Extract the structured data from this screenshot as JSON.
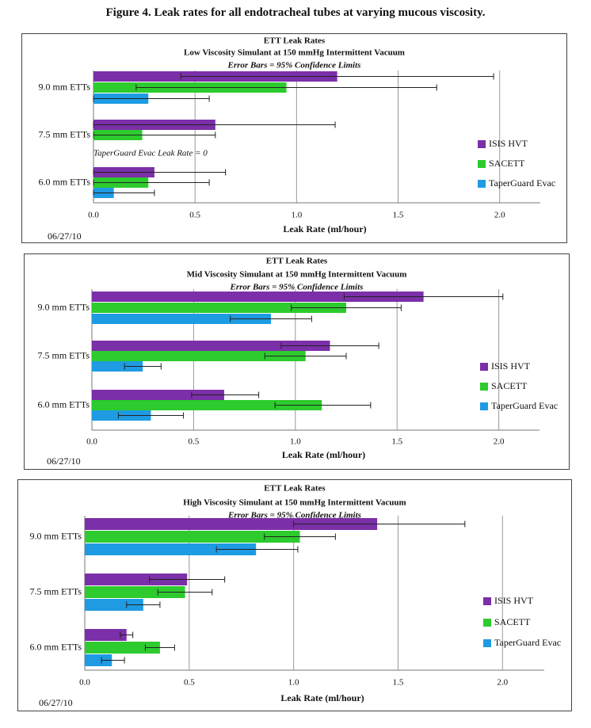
{
  "figure_title": "Figure 4. Leak rates for all endotracheal tubes at varying mucous viscosity.",
  "colors": {
    "isis": "#7B2FA8",
    "sacett": "#2DCB2D",
    "taper": "#1E9BE3",
    "errorbar": "#222222",
    "grid": "#999999"
  },
  "chart_data": [
    {
      "type": "bar",
      "orientation": "horizontal",
      "title": "ETT Leak Rates",
      "subtitle": "Low Viscosity Simulant at 150 mmHg Intermittent Vacuum",
      "note": "Error Bars = 95% Confidence Limits",
      "annotation": "TaperGuard Evac Leak Rate = 0",
      "date": "06/27/10",
      "xlabel": "Leak Rate (ml/hour)",
      "xlim": [
        0,
        2.2
      ],
      "xticks": [
        "0.0",
        "0.5",
        "1.0",
        "1.5",
        "2.0"
      ],
      "categories": [
        "9.0 mm ETTs",
        "7.5 mm ETTs",
        "6.0 mm ETTs"
      ],
      "series": [
        {
          "name": "ISIS HVT",
          "values": [
            1.2,
            0.6,
            0.3
          ],
          "err_low": [
            0.43,
            0.0,
            0.0
          ],
          "err_high": [
            1.97,
            1.19,
            0.65
          ]
        },
        {
          "name": "SACETT",
          "values": [
            0.95,
            0.24,
            0.27
          ],
          "err_low": [
            0.21,
            0.0,
            0.0
          ],
          "err_high": [
            1.69,
            0.6,
            0.57
          ]
        },
        {
          "name": "TaperGuard Evac",
          "values": [
            0.27,
            0.0,
            0.1
          ],
          "err_low": [
            0.0,
            0.0,
            0.0
          ],
          "err_high": [
            0.57,
            0.0,
            0.3
          ]
        }
      ],
      "grid": true,
      "legend": "right"
    },
    {
      "type": "bar",
      "orientation": "horizontal",
      "title": "ETT Leak Rates",
      "subtitle": "Mid Viscosity Simulant at 150 mmHg Intermittent Vacuum",
      "note": "Error Bars = 95% Confidence Limits",
      "date": "06/27/10",
      "xlabel": "Leak Rate (ml/hour)",
      "xlim": [
        0,
        2.2
      ],
      "xticks": [
        "0.0",
        "0.5",
        "1.0",
        "1.5",
        "2.0"
      ],
      "categories": [
        "9.0 mm ETTs",
        "7.5 mm ETTs",
        "6.0 mm ETTs"
      ],
      "series": [
        {
          "name": "ISIS HVT",
          "values": [
            1.63,
            1.17,
            0.65
          ],
          "err_low": [
            1.24,
            0.93,
            0.49
          ],
          "err_high": [
            2.02,
            1.41,
            0.82
          ]
        },
        {
          "name": "SACETT",
          "values": [
            1.25,
            1.05,
            1.13
          ],
          "err_low": [
            0.98,
            0.85,
            0.9
          ],
          "err_high": [
            1.52,
            1.25,
            1.37
          ]
        },
        {
          "name": "TaperGuard Evac",
          "values": [
            0.88,
            0.25,
            0.29
          ],
          "err_low": [
            0.68,
            0.16,
            0.13
          ],
          "err_high": [
            1.08,
            0.34,
            0.45
          ]
        }
      ],
      "grid": true,
      "legend": "right"
    },
    {
      "type": "bar",
      "orientation": "horizontal",
      "title": "ETT Leak Rates",
      "subtitle": "High Viscosity Simulant at 150 mmHg Intermittent Vacuum",
      "note": "Error Bars = 95% Confidence Limits",
      "date": "06/27/10",
      "xlabel": "Leak Rate (ml/hour)",
      "xlim": [
        0,
        2.2
      ],
      "xticks": [
        "0.0",
        "0.5",
        "1.0",
        "1.5",
        "2.0"
      ],
      "categories": [
        "9.0 mm ETTs",
        "7.5 mm ETTs",
        "6.0 mm ETTs"
      ],
      "series": [
        {
          "name": "ISIS HVT",
          "values": [
            1.4,
            0.49,
            0.2
          ],
          "err_low": [
            1.0,
            0.31,
            0.17
          ],
          "err_high": [
            1.82,
            0.67,
            0.23
          ]
        },
        {
          "name": "SACETT",
          "values": [
            1.03,
            0.48,
            0.36
          ],
          "err_low": [
            0.86,
            0.35,
            0.29
          ],
          "err_high": [
            1.2,
            0.61,
            0.43
          ]
        },
        {
          "name": "TaperGuard Evac",
          "values": [
            0.82,
            0.28,
            0.13
          ],
          "err_low": [
            0.63,
            0.2,
            0.08
          ],
          "err_high": [
            1.02,
            0.36,
            0.19
          ]
        }
      ],
      "grid": true,
      "legend": "right"
    }
  ]
}
